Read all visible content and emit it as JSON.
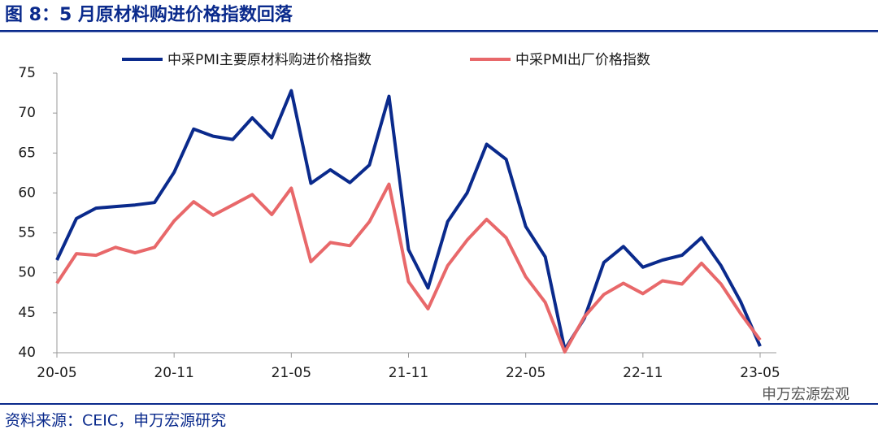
{
  "chart_data": {
    "type": "line",
    "title": "图 8：5 月原材料购进价格指数回落",
    "source": "资料来源：CEIC，申万宏源研究",
    "watermark": "申万宏源宏观",
    "categories": [
      "20-05",
      null,
      null,
      null,
      null,
      null,
      "20-11",
      null,
      null,
      null,
      null,
      null,
      "21-05",
      null,
      null,
      null,
      null,
      null,
      "21-11",
      null,
      null,
      null,
      null,
      null,
      "22-05",
      null,
      null,
      null,
      null,
      null,
      "22-11",
      null,
      null,
      null,
      null,
      null,
      "23-05"
    ],
    "series": [
      {
        "name": "中采PMI主要原材料购进价格指数",
        "color": "#0a2a8c",
        "values": [
          51.6,
          56.8,
          58.1,
          58.3,
          58.5,
          58.8,
          62.6,
          68.0,
          67.1,
          66.7,
          69.4,
          66.9,
          72.8,
          61.2,
          62.9,
          61.3,
          63.5,
          72.1,
          52.9,
          48.1,
          56.4,
          60.0,
          66.1,
          64.2,
          55.8,
          52.0,
          40.4,
          44.3,
          51.3,
          53.3,
          50.7,
          51.6,
          52.2,
          54.4,
          50.9,
          46.4,
          40.8
        ]
      },
      {
        "name": "中采PMI出厂价格指数",
        "color": "#e8686a",
        "values": [
          48.7,
          52.4,
          52.2,
          53.2,
          52.5,
          53.2,
          56.5,
          58.9,
          57.2,
          58.5,
          59.8,
          57.3,
          60.6,
          51.4,
          53.8,
          53.4,
          56.4,
          61.1,
          48.9,
          45.5,
          50.9,
          54.1,
          56.7,
          54.4,
          49.5,
          46.3,
          40.1,
          44.5,
          47.3,
          48.7,
          47.4,
          49.0,
          48.6,
          51.2,
          48.6,
          44.9,
          41.6
        ]
      }
    ],
    "ylim": [
      40,
      75
    ],
    "yticks": [
      40,
      45,
      50,
      55,
      60,
      65,
      70,
      75
    ],
    "legend": "top"
  }
}
